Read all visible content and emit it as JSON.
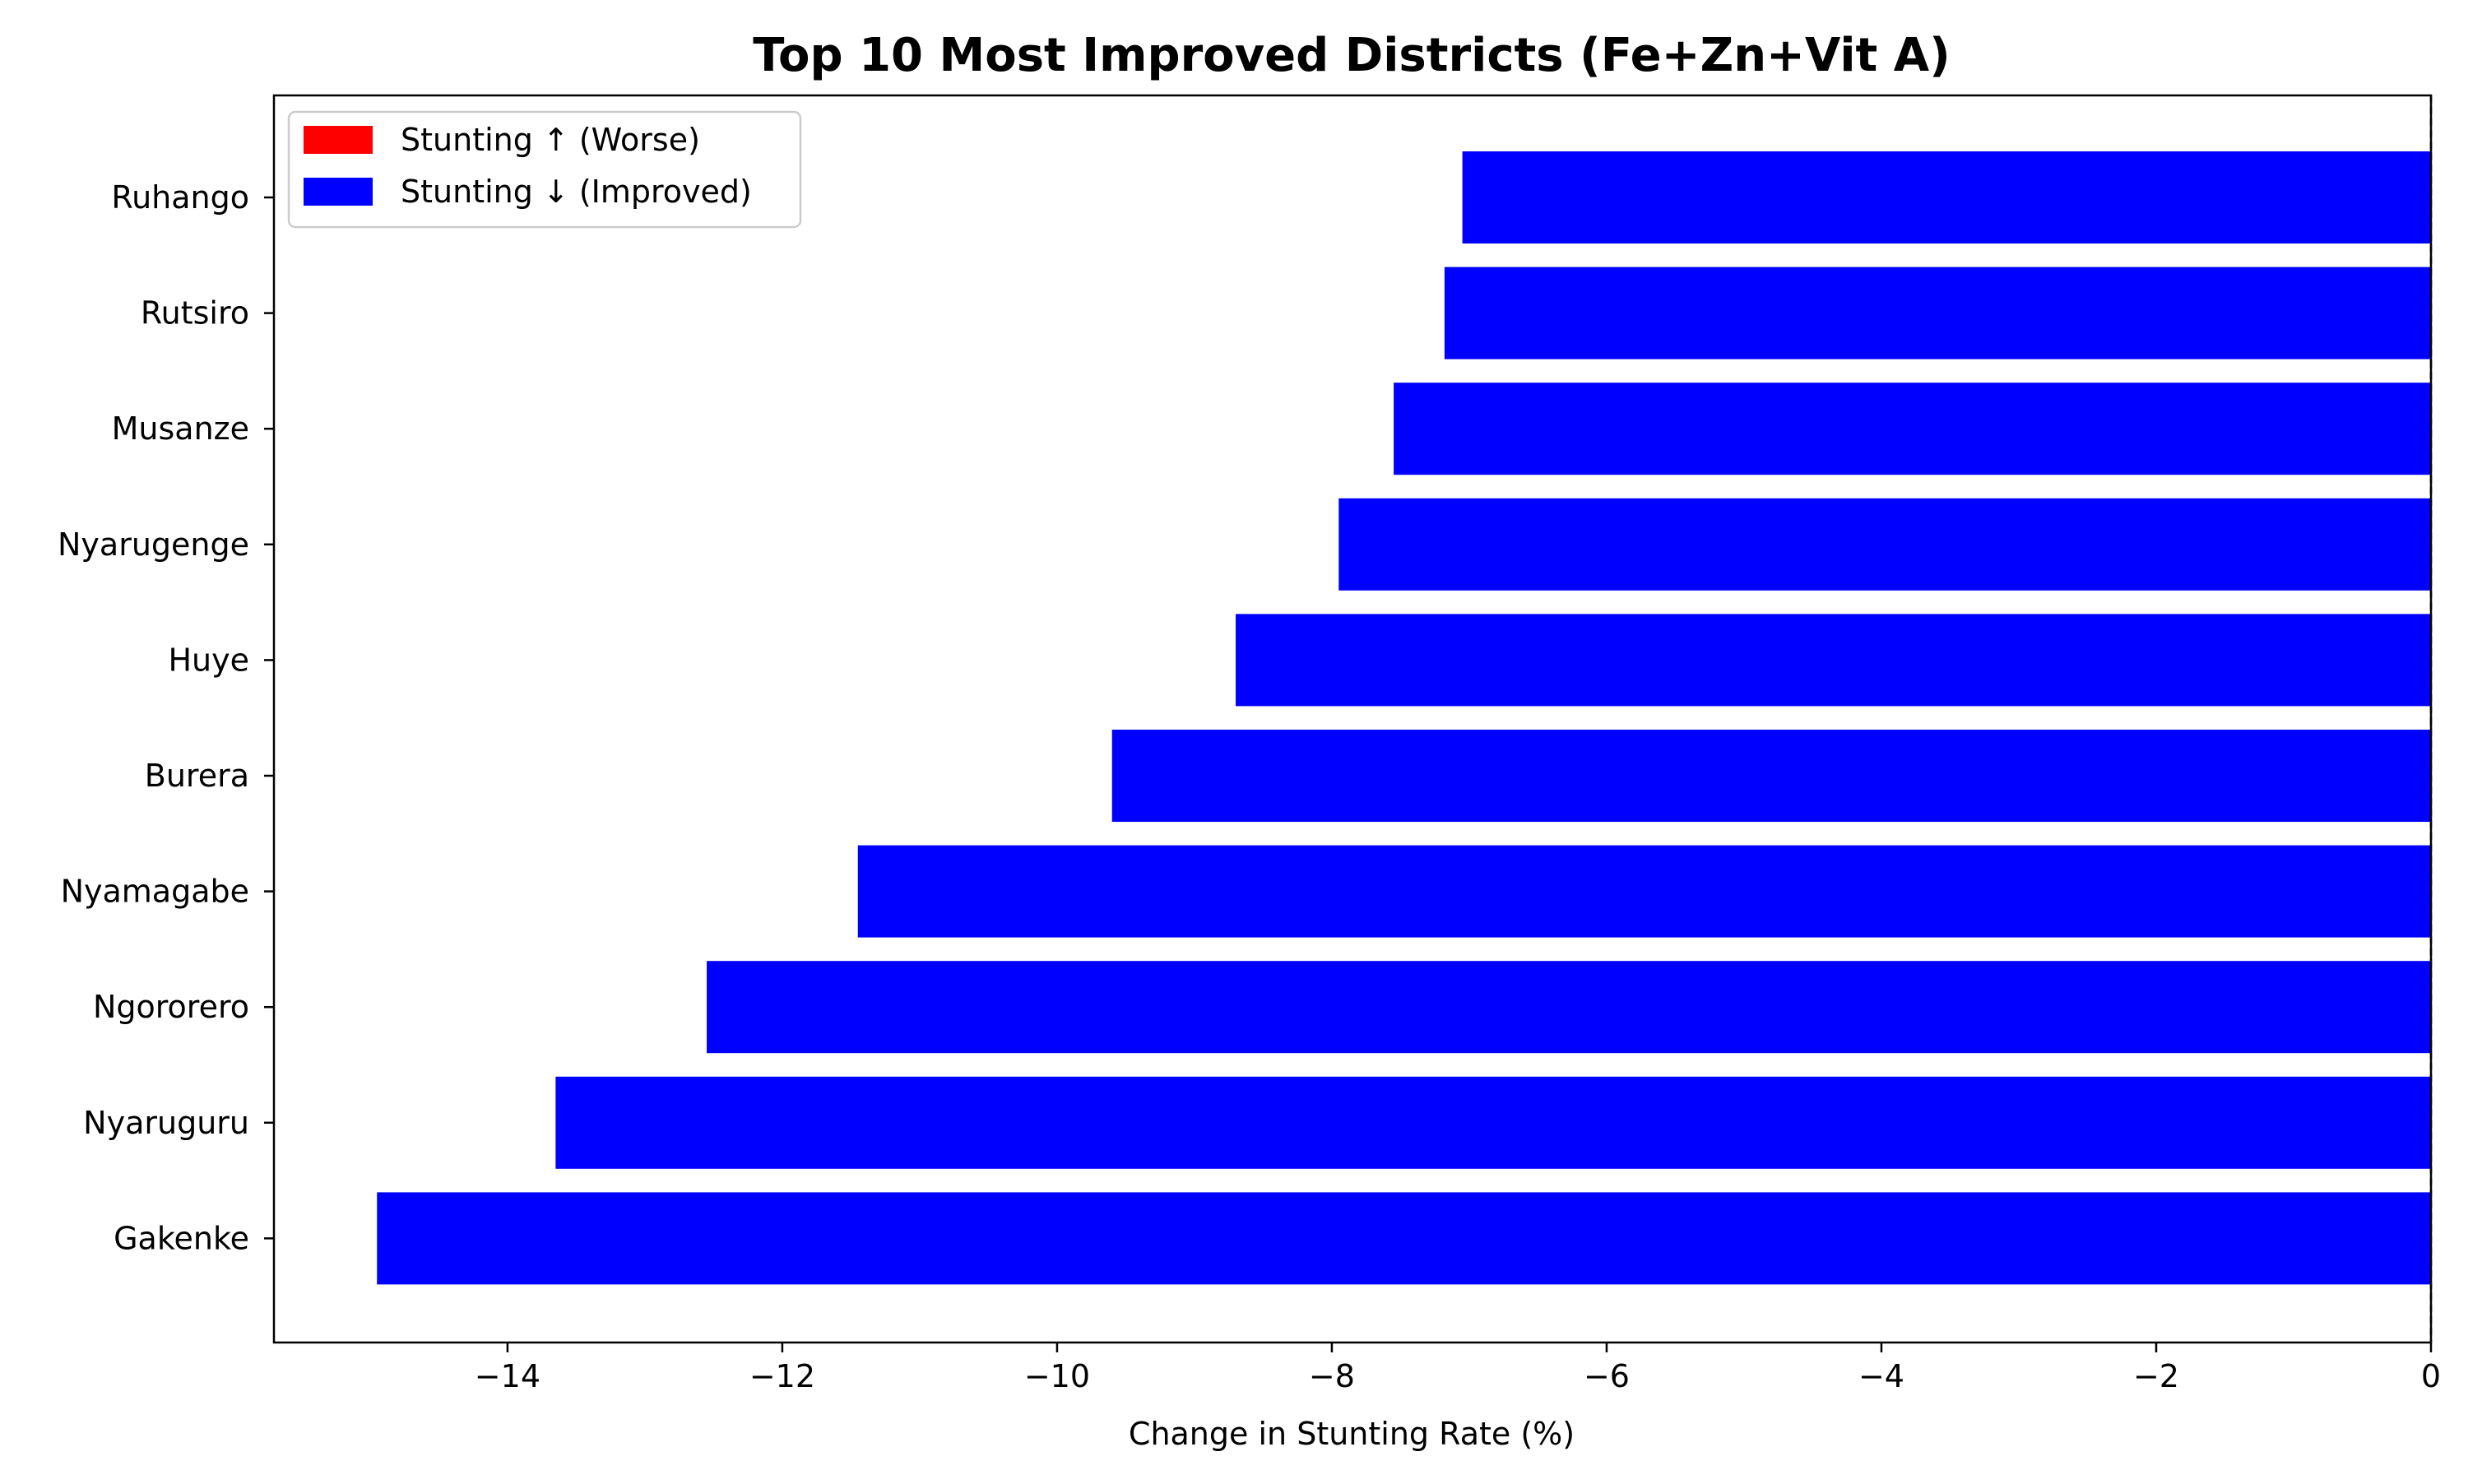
{
  "chart_data": {
    "type": "bar",
    "orientation": "horizontal",
    "title": "Top 10 Most Improved Districts (Fe+Zn+Vit A)",
    "xlabel": "Change in Stunting Rate (%)",
    "ylabel": "",
    "categories": [
      "Ruhango",
      "Rutsiro",
      "Musanze",
      "Nyarugenge",
      "Huye",
      "Burera",
      "Nyamagabe",
      "Ngororero",
      "Nyaruguru",
      "Gakenke"
    ],
    "values": [
      -7.05,
      -7.18,
      -7.55,
      -7.95,
      -8.7,
      -9.6,
      -11.45,
      -12.55,
      -13.65,
      -14.95
    ],
    "xlim": [
      -15.7,
      0
    ],
    "xticks": [
      -14,
      -12,
      -10,
      -8,
      -6,
      -4,
      -2,
      0
    ],
    "xtick_labels": [
      "−14",
      "−12",
      "−10",
      "−8",
      "−6",
      "−4",
      "−2",
      "0"
    ],
    "bar_color": "#0000ff",
    "reference_line": {
      "x": 0,
      "style": "dashed",
      "color": "#000000"
    },
    "legend": {
      "placement": "upper-left",
      "entries": [
        {
          "label": "Stunting ↑ (Worse)",
          "color": "#ff0000"
        },
        {
          "label": "Stunting ↓ (Improved)",
          "color": "#0000ff"
        }
      ]
    },
    "grid": false
  }
}
